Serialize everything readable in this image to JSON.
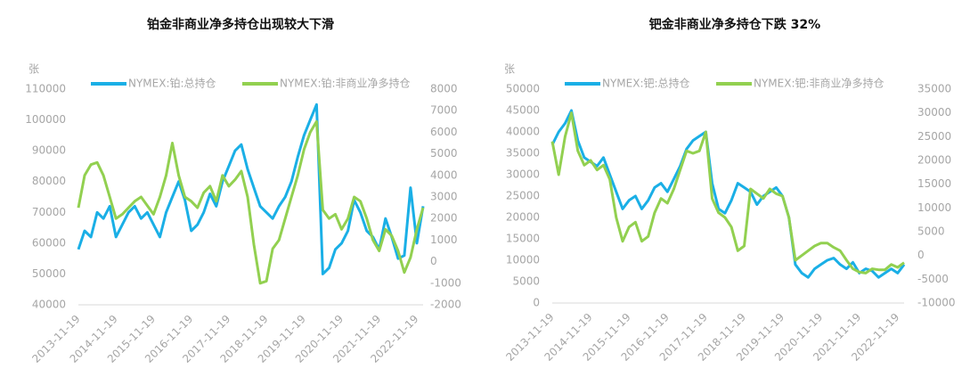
{
  "chart_data": [
    {
      "type": "line",
      "title": "铂金非商业净多持仓出现较大下滑",
      "y_label": "张",
      "categories": [
        "2013-11-19",
        null,
        null,
        null,
        null,
        null,
        "2014-11-19",
        null,
        null,
        null,
        null,
        null,
        "2015-11-19",
        null,
        null,
        null,
        null,
        null,
        "2016-11-19",
        null,
        null,
        null,
        null,
        null,
        "2017-11-19",
        null,
        null,
        null,
        null,
        null,
        "2018-11-19",
        null,
        null,
        null,
        null,
        null,
        "2019-11-19",
        null,
        null,
        null,
        null,
        null,
        "2020-11-19",
        null,
        null,
        null,
        null,
        null,
        "2021-11-19",
        null,
        null,
        null,
        null,
        null,
        "2022-11-19",
        null
      ],
      "ylim": [
        40000,
        110000
      ],
      "yticks": [
        40000,
        50000,
        60000,
        70000,
        80000,
        90000,
        100000,
        110000
      ],
      "y2lim": [
        -2000,
        8000
      ],
      "y2ticks": [
        -2000,
        -1000,
        0,
        1000,
        2000,
        3000,
        4000,
        5000,
        6000,
        7000,
        8000
      ],
      "series": [
        {
          "name": "NYMEX:铂:总持仓",
          "color": "#1aafe6",
          "values": [
            58000,
            64000,
            62000,
            70000,
            68000,
            72000,
            62000,
            66000,
            70000,
            72000,
            68000,
            70000,
            66000,
            62000,
            70000,
            75000,
            80000,
            74000,
            64000,
            66000,
            70000,
            76000,
            72000,
            80000,
            85000,
            90000,
            92000,
            84000,
            78000,
            72000,
            70000,
            68000,
            72000,
            75000,
            80000,
            88000,
            95000,
            100000,
            105000,
            50000,
            52000,
            58000,
            60000,
            64000,
            74000,
            70000,
            64000,
            62000,
            58000,
            68000,
            62000,
            55000,
            56000,
            78000,
            60000,
            72000
          ]
        },
        {
          "name": "NYMEX:铂:非商业净多持仓",
          "color": "#92d050",
          "axis": "y2",
          "values": [
            2500,
            4000,
            4500,
            4600,
            4000,
            3000,
            2000,
            2200,
            2500,
            2800,
            3000,
            2600,
            2200,
            3000,
            4000,
            5500,
            4000,
            3000,
            2800,
            2500,
            3200,
            3500,
            2800,
            4000,
            3500,
            3800,
            4200,
            3000,
            800,
            -1000,
            -900,
            600,
            1000,
            2000,
            3000,
            4000,
            5200,
            6000,
            6500,
            2400,
            2000,
            2200,
            1500,
            2000,
            3000,
            2800,
            2000,
            1000,
            500,
            1500,
            1200,
            500,
            -500,
            200,
            1500,
            2500
          ]
        }
      ]
    },
    {
      "type": "line",
      "title": "钯金非商业净多持仓下跌 32%",
      "y_label": "张",
      "categories": [
        "2013-11-19",
        null,
        null,
        null,
        null,
        null,
        "2014-11-19",
        null,
        null,
        null,
        null,
        null,
        "2015-11-19",
        null,
        null,
        null,
        null,
        null,
        "2016-11-19",
        null,
        null,
        null,
        null,
        null,
        "2017-11-19",
        null,
        null,
        null,
        null,
        null,
        "2018-11-19",
        null,
        null,
        null,
        null,
        null,
        "2019-11-19",
        null,
        null,
        null,
        null,
        null,
        "2020-11-19",
        null,
        null,
        null,
        null,
        null,
        "2021-11-19",
        null,
        null,
        null,
        null,
        null,
        "2022-11-19",
        null
      ],
      "ylim": [
        0,
        50000
      ],
      "yticks": [
        0,
        5000,
        10000,
        15000,
        20000,
        25000,
        30000,
        35000,
        40000,
        45000,
        50000
      ],
      "y2lim": [
        -10000,
        35000
      ],
      "y2ticks": [
        -10000,
        -5000,
        0,
        5000,
        10000,
        15000,
        20000,
        25000,
        30000,
        35000
      ],
      "series": [
        {
          "name": "NYMEX:钯:总持仓",
          "color": "#1aafe6",
          "values": [
            37000,
            40000,
            42000,
            45000,
            38000,
            34000,
            33000,
            32000,
            34000,
            30000,
            26000,
            22000,
            24000,
            25000,
            22000,
            24000,
            27000,
            28000,
            26000,
            29000,
            32000,
            36000,
            38000,
            39000,
            40000,
            28000,
            22000,
            21000,
            24000,
            28000,
            27000,
            26000,
            23000,
            25000,
            26000,
            27000,
            25000,
            20000,
            9000,
            7000,
            6000,
            8000,
            9000,
            10000,
            10500,
            9000,
            8000,
            9500,
            7000,
            8000,
            7500,
            6000,
            7000,
            8000,
            7000,
            9000
          ]
        },
        {
          "name": "NYMEX:钯:非商业净多持仓",
          "color": "#92d050",
          "axis": "y2",
          "values": [
            24000,
            17000,
            25000,
            30000,
            22000,
            19000,
            20000,
            18000,
            19000,
            16000,
            8000,
            3000,
            6000,
            7000,
            3000,
            4000,
            9000,
            12000,
            11000,
            14000,
            18000,
            22000,
            21500,
            22000,
            26000,
            12000,
            9000,
            8000,
            6000,
            1000,
            2000,
            14000,
            13000,
            12000,
            14000,
            13000,
            12500,
            8000,
            -1000,
            0,
            1000,
            2000,
            2600,
            2600,
            1700,
            1000,
            -1000,
            -2800,
            -3500,
            -3700,
            -2800,
            -3000,
            -3000,
            -1900,
            -2500,
            -1500
          ]
        }
      ]
    }
  ]
}
